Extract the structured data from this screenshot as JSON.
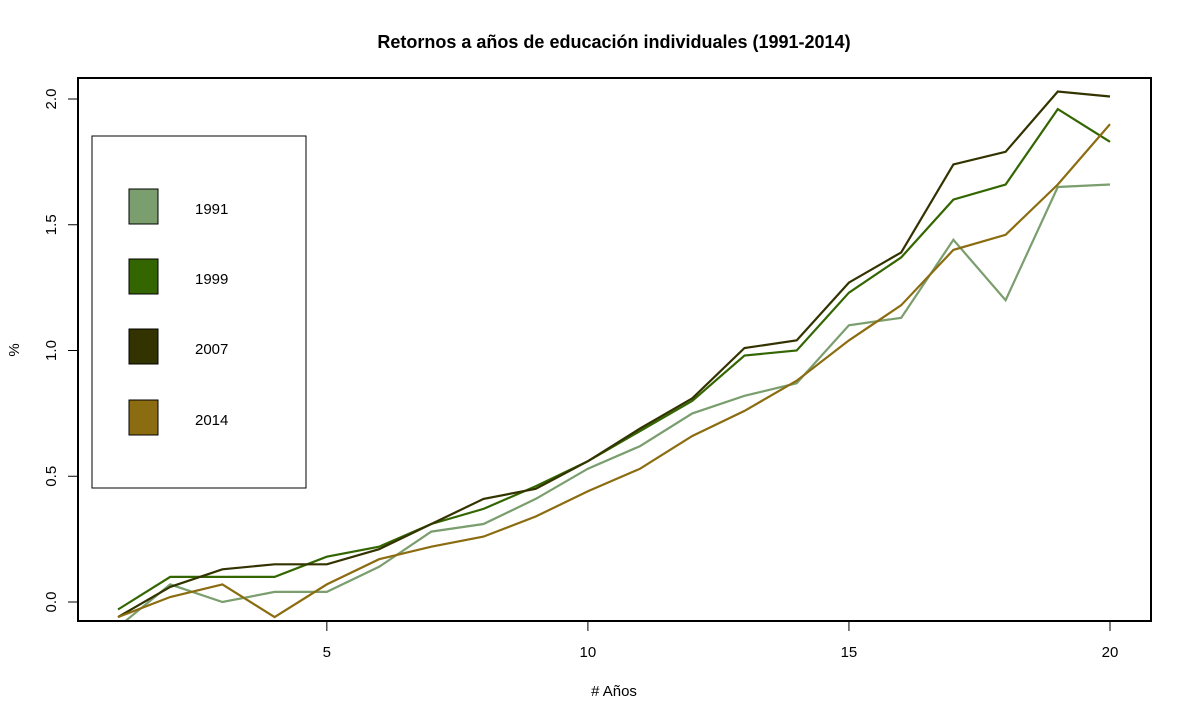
{
  "chart_data": {
    "type": "line",
    "title": "Retornos a años de educación individuales (1991-2014)",
    "xlabel": "# Años",
    "ylabel": "%",
    "xlim": [
      1,
      20
    ],
    "ylim": [
      0,
      2
    ],
    "x_ticks": [
      5,
      10,
      15,
      20
    ],
    "y_ticks": [
      0,
      0.5,
      1,
      1.5,
      2
    ],
    "x_tick_labels": [
      "5",
      "10",
      "15",
      "20"
    ],
    "y_tick_labels": [
      "0.0",
      "0.5",
      "1.0",
      "1.5",
      "2.0"
    ],
    "grid": false,
    "legend_position": "left",
    "x": [
      1,
      2,
      3,
      4,
      5,
      6,
      7,
      8,
      9,
      10,
      11,
      12,
      13,
      14,
      15,
      16,
      17,
      18,
      19,
      20
    ],
    "series": [
      {
        "name": "1991",
        "color": "#7a9e6e",
        "values": [
          -0.1,
          0.07,
          0.0,
          0.04,
          0.04,
          0.14,
          0.28,
          0.31,
          0.41,
          0.53,
          0.62,
          0.75,
          0.82,
          0.87,
          1.1,
          1.13,
          1.44,
          1.2,
          1.65,
          1.66
        ]
      },
      {
        "name": "1999",
        "color": "#336600",
        "values": [
          -0.03,
          0.1,
          0.1,
          0.1,
          0.18,
          0.22,
          0.31,
          0.37,
          0.46,
          0.56,
          0.68,
          0.8,
          0.98,
          1.0,
          1.23,
          1.37,
          1.6,
          1.66,
          1.96,
          1.83
        ]
      },
      {
        "name": "2007",
        "color": "#333300",
        "values": [
          -0.06,
          0.06,
          0.13,
          0.15,
          0.15,
          0.21,
          0.31,
          0.41,
          0.45,
          0.56,
          0.69,
          0.81,
          1.01,
          1.04,
          1.27,
          1.39,
          1.74,
          1.79,
          2.03,
          2.01
        ]
      },
      {
        "name": "2014",
        "color": "#8b6c10",
        "values": [
          -0.06,
          0.02,
          0.07,
          -0.06,
          0.07,
          0.17,
          0.22,
          0.26,
          0.34,
          0.44,
          0.53,
          0.66,
          0.76,
          0.88,
          1.04,
          1.18,
          1.4,
          1.46,
          1.66,
          1.9
        ]
      }
    ]
  }
}
